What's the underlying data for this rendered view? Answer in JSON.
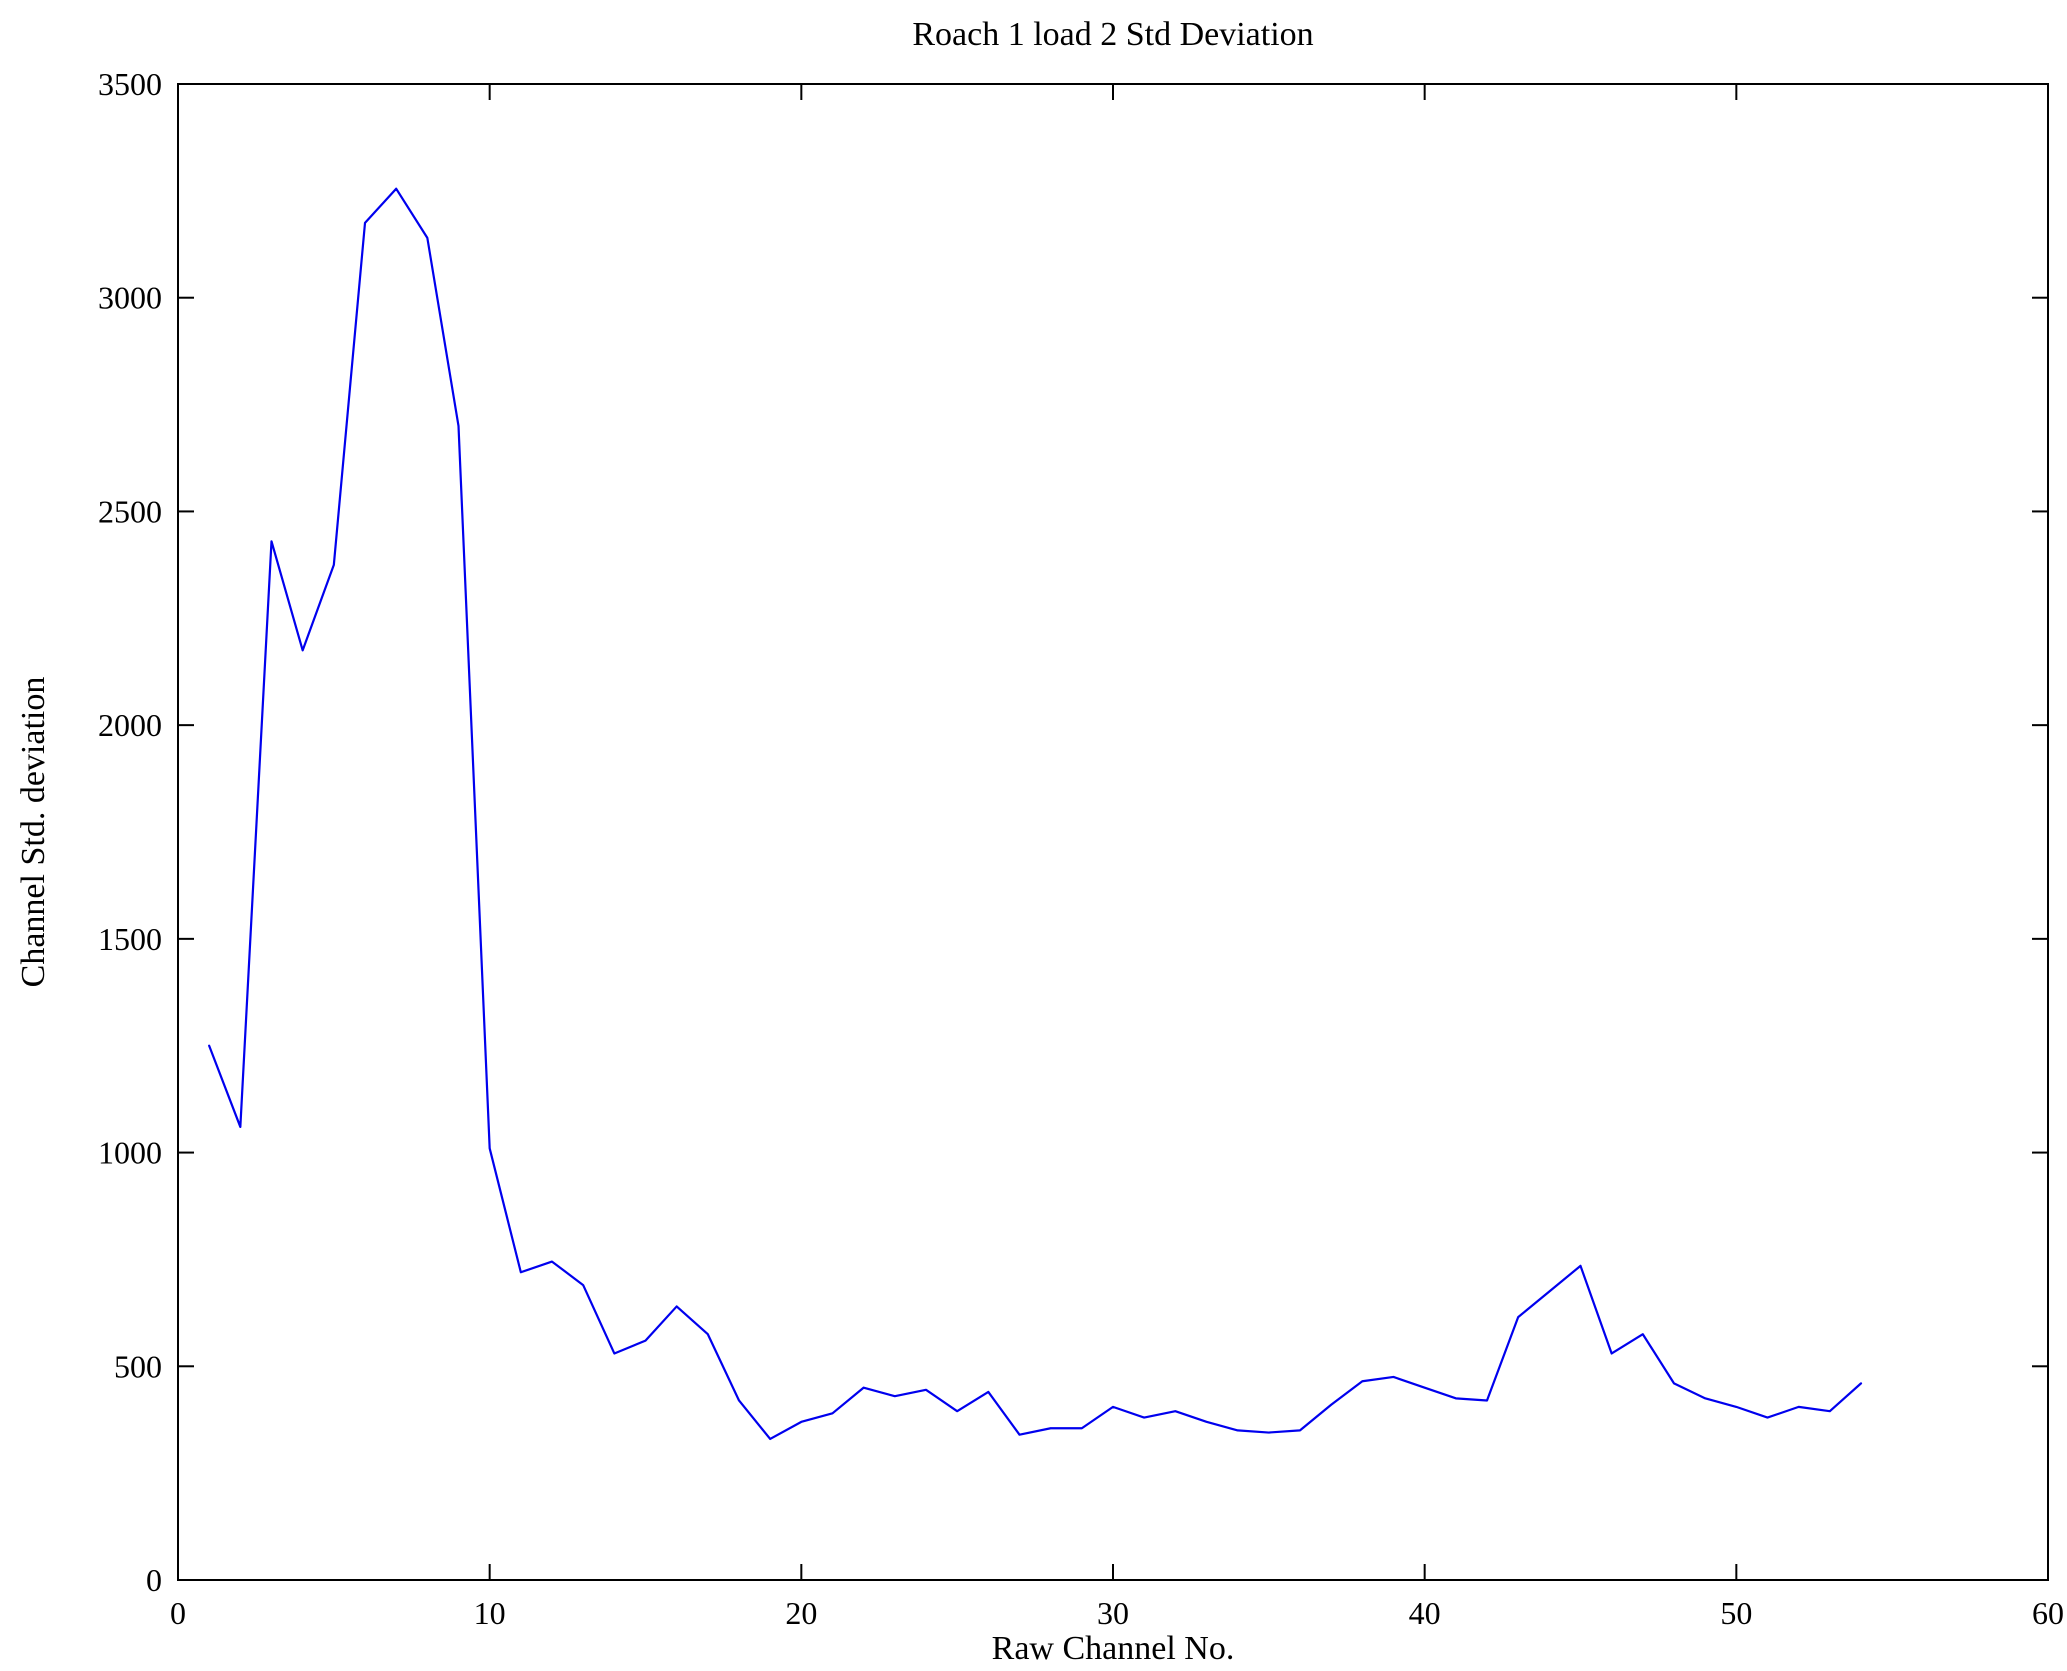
{
  "chart_data": {
    "type": "line",
    "title": "Roach 1 load 2 Std Deviation",
    "xlabel": "Raw Channel No.",
    "ylabel": "Channel Std. deviation",
    "xlim": [
      0,
      60
    ],
    "ylim": [
      0,
      3500
    ],
    "xticks": [
      0,
      10,
      20,
      30,
      40,
      50,
      60
    ],
    "yticks": [
      0,
      500,
      1000,
      1500,
      2000,
      2500,
      3000,
      3500
    ],
    "grid": false,
    "legend": "none",
    "line_color": "#0000ee",
    "axis_color": "#000000",
    "x": [
      1,
      2,
      3,
      4,
      5,
      6,
      7,
      8,
      9,
      10,
      11,
      12,
      13,
      14,
      15,
      16,
      17,
      18,
      19,
      20,
      21,
      22,
      23,
      24,
      25,
      26,
      27,
      28,
      29,
      30,
      31,
      32,
      33,
      34,
      35,
      36,
      37,
      38,
      39,
      40,
      41,
      42,
      43,
      44,
      45,
      46,
      47,
      48,
      49,
      50,
      51,
      52,
      53,
      54
    ],
    "values": [
      1250,
      1060,
      2430,
      2175,
      2375,
      3175,
      3255,
      3140,
      2700,
      1010,
      720,
      745,
      690,
      530,
      560,
      640,
      575,
      420,
      330,
      370,
      390,
      450,
      430,
      445,
      395,
      440,
      340,
      355,
      355,
      405,
      380,
      395,
      370,
      350,
      345,
      350,
      410,
      465,
      475,
      450,
      425,
      420,
      615,
      675,
      735,
      530,
      575,
      460,
      425,
      405,
      380,
      405,
      395,
      460
    ]
  }
}
